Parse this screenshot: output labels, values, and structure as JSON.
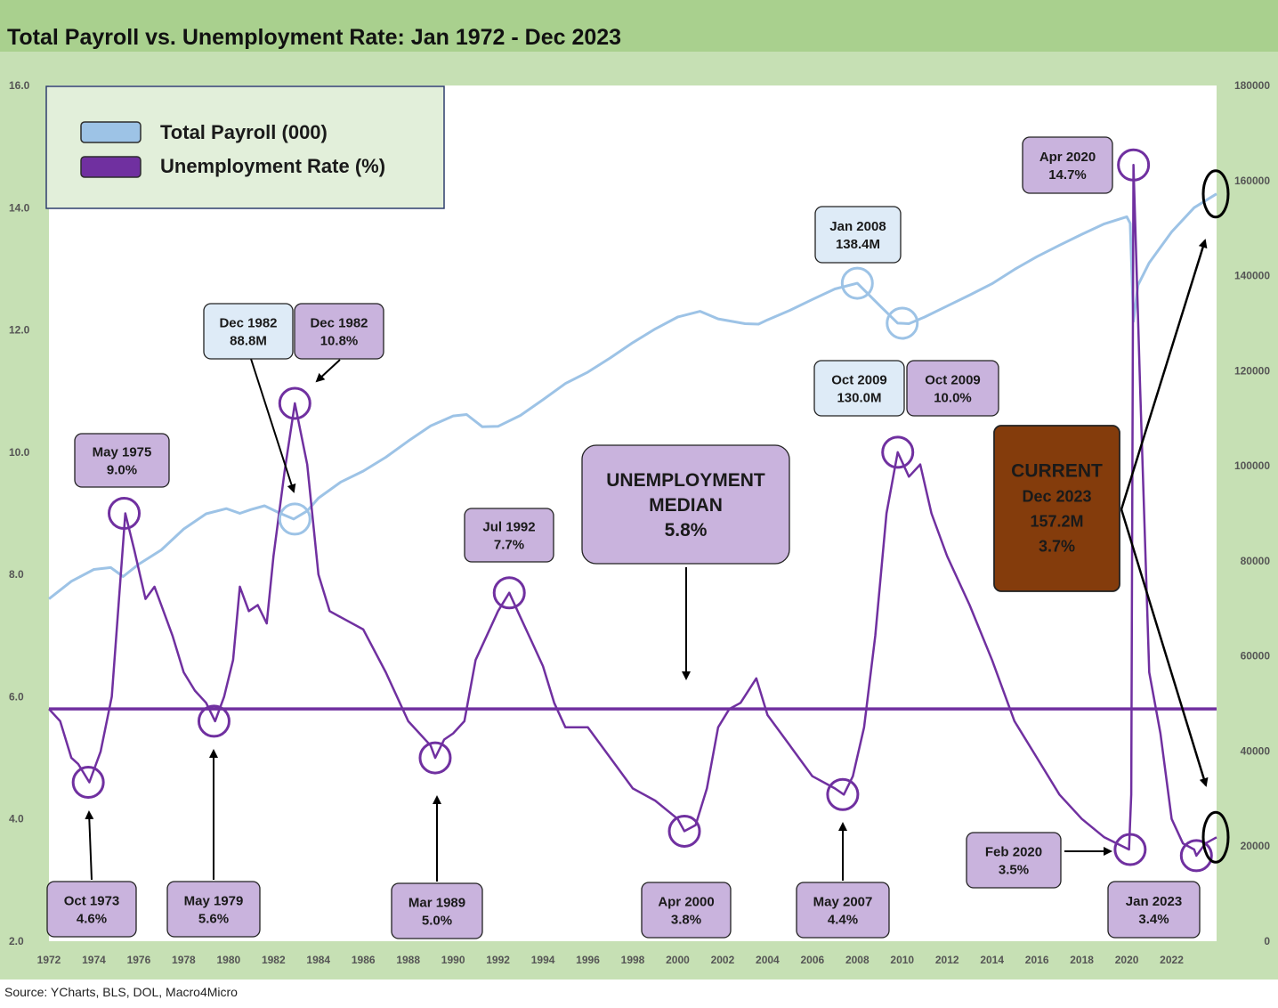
{
  "source": "Source: YCharts, BLS, DOL, Macro4Micro",
  "colors": {
    "header_bg": "#a9d08e",
    "frame_bg": "#c6e0b4",
    "plot_bg": "#ffffff",
    "payroll": "#9dc3e6",
    "unemployment": "#7030a0",
    "box_purple": "#c9b3dd",
    "box_blue": "#deebf7",
    "current_box": "#843c0c",
    "legend_bg": "#e2efda"
  },
  "chart_data": {
    "type": "line",
    "title": "Total Payroll vs. Unemployment Rate: Jan 1972 - Dec 2023",
    "x_ticks": [
      "1972",
      "1974",
      "1976",
      "1978",
      "1980",
      "1982",
      "1984",
      "1986",
      "1988",
      "1990",
      "1992",
      "1994",
      "1996",
      "1998",
      "2000",
      "2002",
      "2004",
      "2006",
      "2008",
      "2010",
      "2012",
      "2014",
      "2016",
      "2018",
      "2020",
      "2022"
    ],
    "x_range": [
      1972.0,
      2024.0
    ],
    "y_left": {
      "ticks": [
        "2.0",
        "4.0",
        "6.0",
        "8.0",
        "10.0",
        "12.0",
        "14.0",
        "16.0"
      ],
      "range": [
        2,
        16
      ]
    },
    "y_right": {
      "ticks": [
        "0",
        "20000",
        "40000",
        "60000",
        "80000",
        "100000",
        "120000",
        "140000",
        "160000",
        "180000"
      ],
      "range": [
        0,
        180000
      ]
    },
    "legend": {
      "placement": "top-left",
      "items": [
        "Total Payroll (000)",
        "Unemployment Rate (%)"
      ]
    },
    "grid": false,
    "series": [
      {
        "name": "Total Payroll (000)",
        "axis": "right",
        "points": [
          [
            1972.0,
            72000
          ],
          [
            1973.0,
            75700
          ],
          [
            1974.0,
            78200
          ],
          [
            1974.75,
            78600
          ],
          [
            1975.3,
            76700
          ],
          [
            1976.0,
            79300
          ],
          [
            1977.0,
            82300
          ],
          [
            1978.0,
            86700
          ],
          [
            1979.0,
            89900
          ],
          [
            1979.9,
            91000
          ],
          [
            1980.5,
            90000
          ],
          [
            1981.0,
            90800
          ],
          [
            1981.6,
            91600
          ],
          [
            1982.3,
            90000
          ],
          [
            1982.9,
            88800
          ],
          [
            1983.5,
            90500
          ],
          [
            1984.0,
            93200
          ],
          [
            1985.0,
            96600
          ],
          [
            1986.0,
            98900
          ],
          [
            1987.0,
            101800
          ],
          [
            1988.0,
            105200
          ],
          [
            1989.0,
            108400
          ],
          [
            1990.0,
            110500
          ],
          [
            1990.6,
            110800
          ],
          [
            1991.3,
            108200
          ],
          [
            1992.0,
            108300
          ],
          [
            1993.0,
            110600
          ],
          [
            1994.0,
            113900
          ],
          [
            1995.0,
            117300
          ],
          [
            1996.0,
            119700
          ],
          [
            1997.0,
            122700
          ],
          [
            1998.0,
            125900
          ],
          [
            1999.0,
            128800
          ],
          [
            2000.0,
            131300
          ],
          [
            2001.0,
            132500
          ],
          [
            2001.8,
            130900
          ],
          [
            2003.0,
            129900
          ],
          [
            2003.6,
            129800
          ],
          [
            2004.0,
            130700
          ],
          [
            2005.0,
            132700
          ],
          [
            2006.0,
            135000
          ],
          [
            2007.0,
            137200
          ],
          [
            2008.0,
            138400
          ],
          [
            2009.0,
            133700
          ],
          [
            2009.8,
            130000
          ],
          [
            2010.3,
            129900
          ],
          [
            2011.0,
            131300
          ],
          [
            2012.0,
            133600
          ],
          [
            2013.0,
            135900
          ],
          [
            2014.0,
            138300
          ],
          [
            2015.0,
            141300
          ],
          [
            2016.0,
            144000
          ],
          [
            2017.0,
            146400
          ],
          [
            2018.0,
            148700
          ],
          [
            2019.0,
            150900
          ],
          [
            2020.0,
            152400
          ],
          [
            2020.15,
            151000
          ],
          [
            2020.3,
            130400
          ],
          [
            2020.5,
            138000
          ],
          [
            2021.0,
            142700
          ],
          [
            2022.0,
            149200
          ],
          [
            2023.0,
            154300
          ],
          [
            2024.0,
            157200
          ]
        ]
      },
      {
        "name": "Unemployment Rate (%)",
        "axis": "left",
        "points": [
          [
            1972.0,
            5.8
          ],
          [
            1972.5,
            5.6
          ],
          [
            1973.0,
            5.0
          ],
          [
            1973.3,
            4.9
          ],
          [
            1973.8,
            4.6
          ],
          [
            1974.3,
            5.1
          ],
          [
            1974.8,
            6.0
          ],
          [
            1975.1,
            7.5
          ],
          [
            1975.4,
            9.0
          ],
          [
            1975.8,
            8.4
          ],
          [
            1976.3,
            7.6
          ],
          [
            1976.7,
            7.8
          ],
          [
            1977.0,
            7.5
          ],
          [
            1977.5,
            7.0
          ],
          [
            1978.0,
            6.4
          ],
          [
            1978.5,
            6.1
          ],
          [
            1979.0,
            5.9
          ],
          [
            1979.4,
            5.6
          ],
          [
            1979.8,
            6.0
          ],
          [
            1980.2,
            6.6
          ],
          [
            1980.5,
            7.8
          ],
          [
            1980.9,
            7.4
          ],
          [
            1981.3,
            7.5
          ],
          [
            1981.7,
            7.2
          ],
          [
            1982.0,
            8.3
          ],
          [
            1982.5,
            9.7
          ],
          [
            1982.95,
            10.8
          ],
          [
            1983.5,
            9.8
          ],
          [
            1984.0,
            8.0
          ],
          [
            1984.5,
            7.4
          ],
          [
            1985.0,
            7.3
          ],
          [
            1986.0,
            7.1
          ],
          [
            1987.0,
            6.4
          ],
          [
            1988.0,
            5.6
          ],
          [
            1989.0,
            5.2
          ],
          [
            1989.2,
            5.0
          ],
          [
            1989.6,
            5.3
          ],
          [
            1990.0,
            5.4
          ],
          [
            1990.5,
            5.6
          ],
          [
            1991.0,
            6.6
          ],
          [
            1991.5,
            7.0
          ],
          [
            1992.0,
            7.4
          ],
          [
            1992.5,
            7.7
          ],
          [
            1993.0,
            7.3
          ],
          [
            1993.5,
            6.9
          ],
          [
            1994.0,
            6.5
          ],
          [
            1994.5,
            5.9
          ],
          [
            1995.0,
            5.5
          ],
          [
            1996.0,
            5.5
          ],
          [
            1997.0,
            5.0
          ],
          [
            1998.0,
            4.5
          ],
          [
            1999.0,
            4.3
          ],
          [
            2000.0,
            4.0
          ],
          [
            2000.3,
            3.8
          ],
          [
            2000.8,
            3.9
          ],
          [
            2001.3,
            4.5
          ],
          [
            2001.8,
            5.5
          ],
          [
            2002.3,
            5.8
          ],
          [
            2002.8,
            5.9
          ],
          [
            2003.5,
            6.3
          ],
          [
            2004.0,
            5.7
          ],
          [
            2005.0,
            5.2
          ],
          [
            2006.0,
            4.7
          ],
          [
            2007.0,
            4.5
          ],
          [
            2007.4,
            4.4
          ],
          [
            2007.8,
            4.7
          ],
          [
            2008.3,
            5.5
          ],
          [
            2008.8,
            7.0
          ],
          [
            2009.3,
            9.0
          ],
          [
            2009.8,
            10.0
          ],
          [
            2010.3,
            9.6
          ],
          [
            2010.8,
            9.8
          ],
          [
            2011.3,
            9.0
          ],
          [
            2012.0,
            8.3
          ],
          [
            2013.0,
            7.5
          ],
          [
            2014.0,
            6.6
          ],
          [
            2015.0,
            5.6
          ],
          [
            2016.0,
            5.0
          ],
          [
            2017.0,
            4.4
          ],
          [
            2018.0,
            4.0
          ],
          [
            2019.0,
            3.7
          ],
          [
            2020.1,
            3.5
          ],
          [
            2020.2,
            4.4
          ],
          [
            2020.3,
            14.7
          ],
          [
            2020.6,
            11.0
          ],
          [
            2021.0,
            6.4
          ],
          [
            2021.5,
            5.4
          ],
          [
            2022.0,
            4.0
          ],
          [
            2022.5,
            3.6
          ],
          [
            2023.0,
            3.5
          ],
          [
            2023.1,
            3.4
          ],
          [
            2023.5,
            3.6
          ],
          [
            2024.0,
            3.7
          ]
        ]
      },
      {
        "name": "Unemployment Median",
        "axis": "left",
        "value": 5.8
      }
    ],
    "annotations": [
      {
        "id": "oct1973",
        "lines": [
          "Oct 1973",
          "4.6%"
        ],
        "style": "purple",
        "x": 1973.75,
        "y": 4.6,
        "axis": "left"
      },
      {
        "id": "may1975",
        "lines": [
          "May 1975",
          "9.0%"
        ],
        "style": "purple",
        "x": 1975.35,
        "y": 9.0,
        "axis": "left"
      },
      {
        "id": "may1979",
        "lines": [
          "May 1979",
          "5.6%"
        ],
        "style": "purple",
        "x": 1979.35,
        "y": 5.6,
        "axis": "left"
      },
      {
        "id": "dec1982p",
        "lines": [
          "Dec 1982",
          "88.8M"
        ],
        "style": "blue",
        "x": 1982.95,
        "y": 88800,
        "axis": "right"
      },
      {
        "id": "dec1982u",
        "lines": [
          "Dec 1982",
          "10.8%"
        ],
        "style": "purple",
        "x": 1982.95,
        "y": 10.8,
        "axis": "left"
      },
      {
        "id": "mar1989",
        "lines": [
          "Mar 1989",
          "5.0%"
        ],
        "style": "purple",
        "x": 1989.2,
        "y": 5.0,
        "axis": "left"
      },
      {
        "id": "jul1992",
        "lines": [
          "Jul 1992",
          "7.7%"
        ],
        "style": "purple",
        "x": 1992.5,
        "y": 7.7,
        "axis": "left"
      },
      {
        "id": "median",
        "lines": [
          "UNEMPLOYMENT",
          "MEDIAN",
          "5.8%"
        ],
        "style": "purple-large",
        "y": 5.8,
        "axis": "left"
      },
      {
        "id": "apr2000",
        "lines": [
          "Apr 2000",
          "3.8%"
        ],
        "style": "purple",
        "x": 2000.3,
        "y": 3.8,
        "axis": "left"
      },
      {
        "id": "may2007",
        "lines": [
          "May 2007",
          "4.4%"
        ],
        "style": "purple",
        "x": 2007.35,
        "y": 4.4,
        "axis": "left"
      },
      {
        "id": "jan2008",
        "lines": [
          "Jan 2008",
          "138.4M"
        ],
        "style": "blue",
        "x": 2008.0,
        "y": 138400,
        "axis": "right"
      },
      {
        "id": "oct2009p",
        "lines": [
          "Oct 2009",
          "130.0M"
        ],
        "style": "blue",
        "x": 2010.0,
        "y": 130000,
        "axis": "right"
      },
      {
        "id": "oct2009u",
        "lines": [
          "Oct 2009",
          "10.0%"
        ],
        "style": "purple",
        "x": 2009.8,
        "y": 10.0,
        "axis": "left"
      },
      {
        "id": "apr2020",
        "lines": [
          "Apr 2020",
          "14.7%"
        ],
        "style": "purple",
        "x": 2020.3,
        "y": 14.7,
        "axis": "left"
      },
      {
        "id": "feb2020",
        "lines": [
          "Feb 2020",
          "3.5%"
        ],
        "style": "purple",
        "x": 2020.15,
        "y": 3.5,
        "axis": "left"
      },
      {
        "id": "jan2023",
        "lines": [
          "Jan 2023",
          "3.4%"
        ],
        "style": "purple",
        "x": 2023.1,
        "y": 3.4,
        "axis": "left"
      },
      {
        "id": "current",
        "lines": [
          "CURRENT",
          "Dec 2023",
          "157.2M",
          "3.7%"
        ],
        "style": "brown",
        "x": 2023.95,
        "y": 157200,
        "axis": "right"
      }
    ]
  }
}
